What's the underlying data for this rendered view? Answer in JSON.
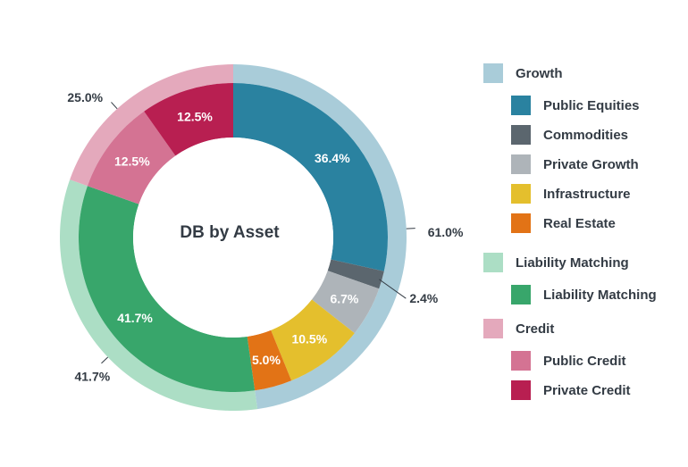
{
  "chart_data": {
    "type": "pie",
    "title": "DB by Asset",
    "inner_ring": [
      {
        "name": "Public Equities",
        "value": 36.4,
        "label": "36.4%",
        "color": "#2a82a0"
      },
      {
        "name": "Commodities",
        "value": 2.4,
        "label": "2.4%",
        "color": "#5b666e"
      },
      {
        "name": "Private Growth",
        "value": 6.7,
        "label": "6.7%",
        "color": "#aeb4b9"
      },
      {
        "name": "Infrastructure",
        "value": 10.5,
        "label": "10.5%",
        "color": "#e4bf2d"
      },
      {
        "name": "Real Estate",
        "value": 5.0,
        "label": "5.0%",
        "color": "#e27316"
      },
      {
        "name": "Liability Matching",
        "value": 41.7,
        "label": "41.7%",
        "color": "#38a66b"
      },
      {
        "name": "Public Credit",
        "value": 12.5,
        "label": "12.5%",
        "color": "#d47393"
      },
      {
        "name": "Private Credit",
        "value": 12.5,
        "label": "12.5%",
        "color": "#b81f51"
      }
    ],
    "outer_ring": [
      {
        "name": "Growth",
        "value": 61.0,
        "label": "61.0%",
        "color": "#a9ccd9"
      },
      {
        "name": "Liability Matching",
        "value": 41.7,
        "label": "41.7%",
        "color": "#acdec5"
      },
      {
        "name": "Credit",
        "value": 25.0,
        "label": "25.0%",
        "color": "#e4a9bc"
      }
    ],
    "legend": [
      {
        "name": "Growth",
        "color": "#a9ccd9",
        "level": "group"
      },
      {
        "name": "Public Equities",
        "color": "#2a82a0",
        "level": "item"
      },
      {
        "name": "Commodities",
        "color": "#5b666e",
        "level": "item"
      },
      {
        "name": "Private Growth",
        "color": "#aeb4b9",
        "level": "item"
      },
      {
        "name": "Infrastructure",
        "color": "#e4bf2d",
        "level": "item"
      },
      {
        "name": "Real Estate",
        "color": "#e27316",
        "level": "item"
      },
      {
        "name": "Liability Matching",
        "color": "#acdec5",
        "level": "group"
      },
      {
        "name": "Liability Matching",
        "color": "#38a66b",
        "level": "item"
      },
      {
        "name": "Credit",
        "color": "#e4a9bc",
        "level": "group"
      },
      {
        "name": "Public Credit",
        "color": "#d47393",
        "level": "item"
      },
      {
        "name": "Private Credit",
        "color": "#b81f51",
        "level": "item"
      }
    ],
    "legend_position": "right"
  }
}
